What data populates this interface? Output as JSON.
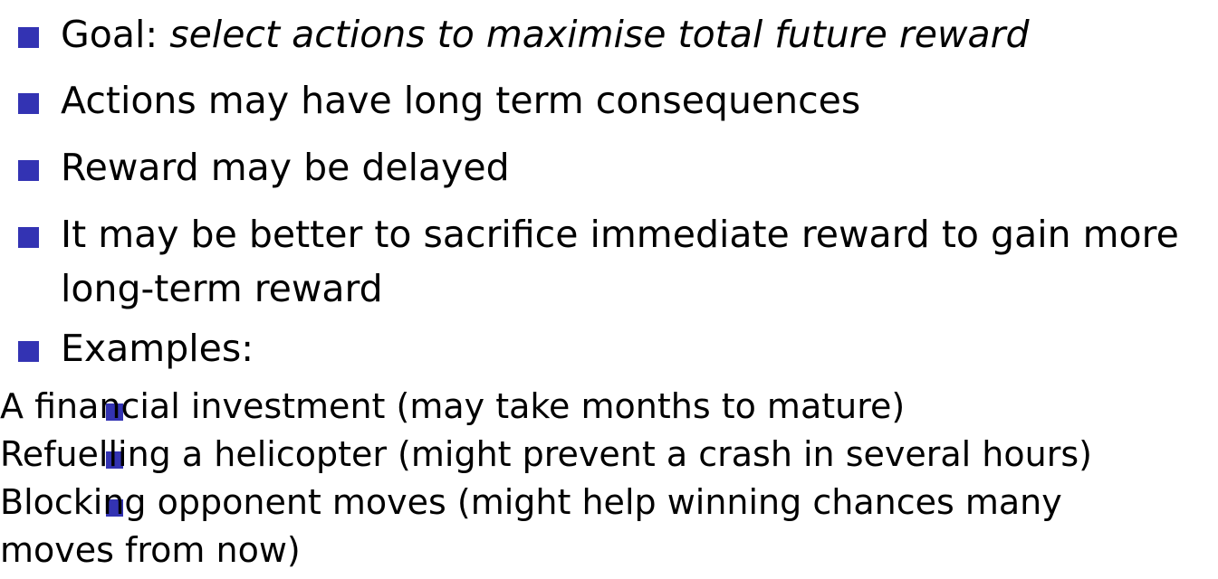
{
  "bullets": [
    {
      "prefix": "Goal: ",
      "emphasis": "select actions to maximise total future reward"
    },
    {
      "text": "Actions may have long term consequences"
    },
    {
      "text": "Reward may be delayed"
    },
    {
      "line1": "It may be better to sacrifice immediate reward to gain more",
      "line2": "long-term reward"
    },
    {
      "text": "Examples:"
    }
  ],
  "examples": [
    {
      "text": "A financial investment (may take months to mature)"
    },
    {
      "text": "Refuelling a helicopter (might prevent a crash in several hours)"
    },
    {
      "line1": "Blocking opponent moves (might help winning chances many",
      "line2": "moves from now)"
    }
  ],
  "colors": {
    "bullet": "#3333b3",
    "text": "#000000"
  }
}
